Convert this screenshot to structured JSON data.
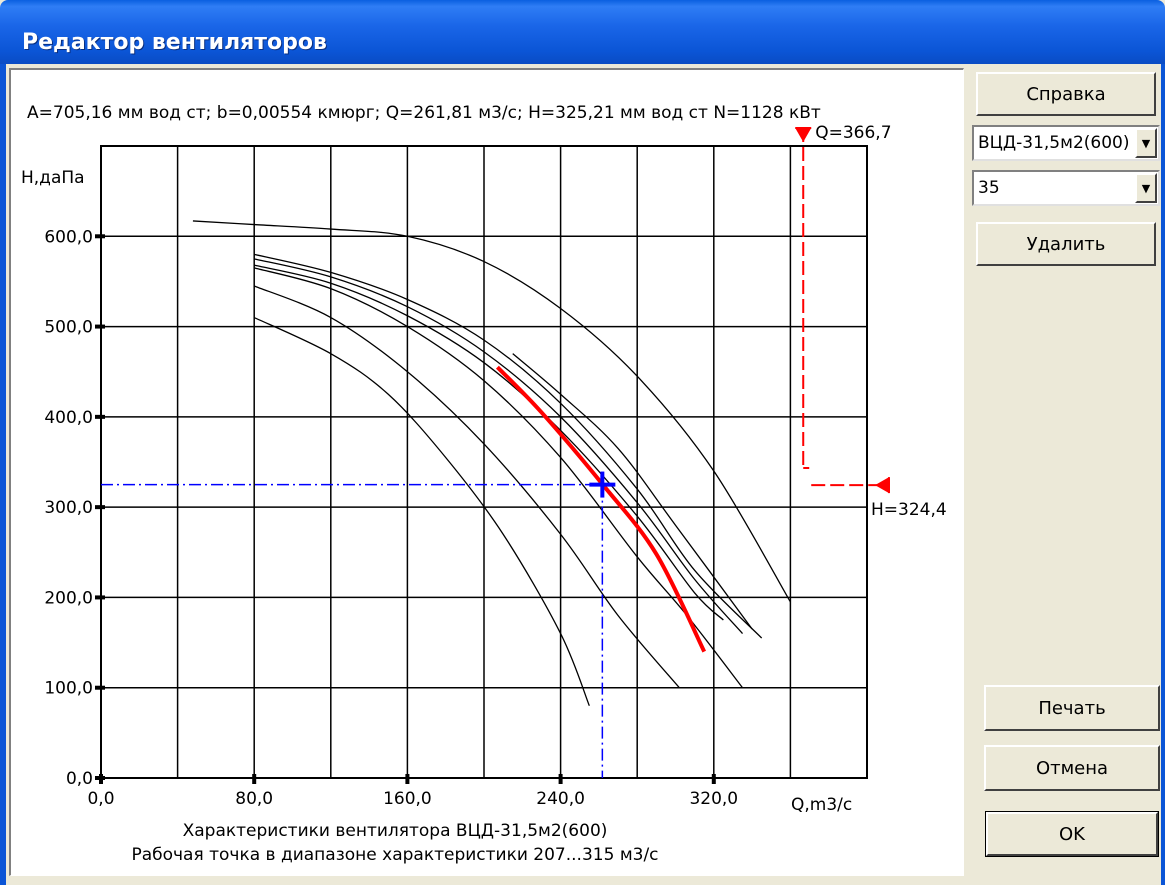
{
  "window": {
    "title": "Редактор вентиляторов"
  },
  "info_line": "A=705,16 мм вод ст;  b=0,00554 кмюрг;  Q=261,81 м3/с;  H=325,21 мм вод ст  N=1128 кВт",
  "sidebar": {
    "help_label": "Справка",
    "fan_select": "ВЦД-31,5м2(600)",
    "angle_select": "35",
    "delete_label": "Удалить",
    "print_label": "Печать",
    "cancel_label": "Отмена",
    "ok_label": "OK"
  },
  "colors": {
    "accent_red": "#ff0000",
    "guide_blue": "#0000ff",
    "title_blue": "#0b55d6"
  },
  "chart_data": {
    "type": "line",
    "ylabel": "H,даПа",
    "xlabel": "Q,m3/c",
    "xlim": [
      0,
      400
    ],
    "ylim": [
      0,
      700
    ],
    "x_ticks": [
      "0,0",
      "80,0",
      "160,0",
      "240,0",
      "320,0"
    ],
    "y_ticks": [
      "0,0",
      "100,0",
      "200,0",
      "300,0",
      "400,0",
      "500,0",
      "600,0"
    ],
    "grid": true,
    "caption_line1": "Характеристики вентилятора ВЦД-31,5м2(600)",
    "caption_line2": "Рабочая точка в диапазоне характеристики 207...315 м3/с",
    "q_marker_label": "Q=366,7",
    "h_marker_label": "H=324,4",
    "q_marker": 366.7,
    "h_marker": 324.4,
    "operating_point": {
      "x": 261.8,
      "y": 325
    },
    "series": [
      {
        "values": [
          [
            48,
            617
          ],
          [
            80,
            613
          ],
          [
            120,
            608
          ],
          [
            160,
            600
          ],
          [
            200,
            572
          ],
          [
            240,
            520
          ],
          [
            280,
            445
          ],
          [
            320,
            340
          ],
          [
            360,
            195
          ]
        ]
      },
      {
        "values": [
          [
            80,
            580
          ],
          [
            120,
            560
          ],
          [
            160,
            530
          ],
          [
            200,
            485
          ],
          [
            240,
            415
          ],
          [
            280,
            320
          ],
          [
            310,
            230
          ],
          [
            345,
            155
          ]
        ]
      },
      {
        "values": [
          [
            80,
            575
          ],
          [
            120,
            555
          ],
          [
            160,
            522
          ],
          [
            200,
            472
          ],
          [
            240,
            400
          ],
          [
            280,
            305
          ],
          [
            310,
            220
          ],
          [
            335,
            160
          ]
        ]
      },
      {
        "values": [
          [
            80,
            568
          ],
          [
            120,
            548
          ],
          [
            160,
            512
          ],
          [
            200,
            460
          ],
          [
            240,
            385
          ],
          [
            280,
            290
          ],
          [
            310,
            205
          ],
          [
            325,
            175
          ]
        ]
      },
      {
        "values": [
          [
            80,
            565
          ],
          [
            120,
            542
          ],
          [
            160,
            500
          ],
          [
            200,
            440
          ],
          [
            240,
            355
          ],
          [
            280,
            245
          ],
          [
            306,
            180
          ],
          [
            335,
            100
          ]
        ]
      },
      {
        "values": [
          [
            80,
            545
          ],
          [
            120,
            510
          ],
          [
            160,
            450
          ],
          [
            200,
            370
          ],
          [
            240,
            270
          ],
          [
            270,
            180
          ],
          [
            302,
            100
          ]
        ]
      },
      {
        "values": [
          [
            80,
            510
          ],
          [
            120,
            470
          ],
          [
            150,
            425
          ],
          [
            180,
            355
          ],
          [
            210,
            270
          ],
          [
            240,
            160
          ],
          [
            255,
            80
          ]
        ]
      },
      {
        "values": [
          [
            215,
            470
          ],
          [
            240,
            425
          ],
          [
            270,
            365
          ],
          [
            300,
            280
          ],
          [
            340,
            165
          ]
        ]
      }
    ],
    "selected_series": {
      "values": [
        [
          207,
          455
        ],
        [
          230,
          405
        ],
        [
          262,
          325
        ],
        [
          290,
          248
        ],
        [
          315,
          140
        ]
      ]
    }
  }
}
